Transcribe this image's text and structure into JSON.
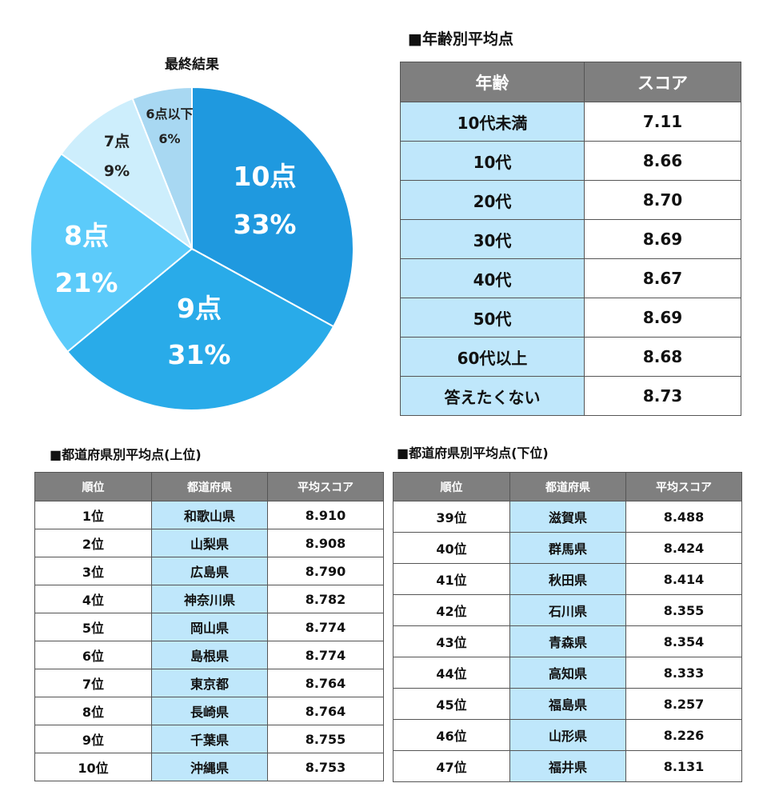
{
  "chart_data": {
    "type": "pie",
    "title": "最終結果",
    "series": [
      {
        "label": "10点",
        "value": 33,
        "pct": "33%",
        "color": "#1f99df"
      },
      {
        "label": "9点",
        "value": 31,
        "pct": "31%",
        "color": "#29abe9"
      },
      {
        "label": "8点",
        "value": 21,
        "pct": "21%",
        "color": "#5ccbfa"
      },
      {
        "label": "7点",
        "value": 9,
        "pct": "9%",
        "color": "#cdeefc"
      },
      {
        "label": "6点以下",
        "value": 6,
        "pct": "6%",
        "color": "#a8d8f2"
      }
    ]
  },
  "age_section": {
    "title": "■年齢別平均点",
    "headers": [
      "年齢",
      "スコア"
    ],
    "rows": [
      {
        "age": "10代未満",
        "score": "7.11"
      },
      {
        "age": "10代",
        "score": "8.66"
      },
      {
        "age": "20代",
        "score": "8.70"
      },
      {
        "age": "30代",
        "score": "8.69"
      },
      {
        "age": "40代",
        "score": "8.67"
      },
      {
        "age": "50代",
        "score": "8.69"
      },
      {
        "age": "60代以上",
        "score": "8.68"
      },
      {
        "age": "答えたくない",
        "score": "8.73"
      }
    ]
  },
  "pref_top": {
    "title": "■都道府県別平均点(上位)",
    "headers": [
      "順位",
      "都道府県",
      "平均スコア"
    ],
    "rows": [
      {
        "rank": "1位",
        "pref": "和歌山県",
        "score": "8.910"
      },
      {
        "rank": "2位",
        "pref": "山梨県",
        "score": "8.908"
      },
      {
        "rank": "3位",
        "pref": "広島県",
        "score": "8.790"
      },
      {
        "rank": "4位",
        "pref": "神奈川県",
        "score": "8.782"
      },
      {
        "rank": "5位",
        "pref": "岡山県",
        "score": "8.774"
      },
      {
        "rank": "6位",
        "pref": "島根県",
        "score": "8.774"
      },
      {
        "rank": "7位",
        "pref": "東京都",
        "score": "8.764"
      },
      {
        "rank": "8位",
        "pref": "長崎県",
        "score": "8.764"
      },
      {
        "rank": "9位",
        "pref": "千葉県",
        "score": "8.755"
      },
      {
        "rank": "10位",
        "pref": "沖縄県",
        "score": "8.753"
      }
    ]
  },
  "pref_bottom": {
    "title": "■都道府県別平均点(下位)",
    "headers": [
      "順位",
      "都道府県",
      "平均スコア"
    ],
    "rows": [
      {
        "rank": "39位",
        "pref": "滋賀県",
        "score": "8.488"
      },
      {
        "rank": "40位",
        "pref": "群馬県",
        "score": "8.424"
      },
      {
        "rank": "41位",
        "pref": "秋田県",
        "score": "8.414"
      },
      {
        "rank": "42位",
        "pref": "石川県",
        "score": "8.355"
      },
      {
        "rank": "43位",
        "pref": "青森県",
        "score": "8.354"
      },
      {
        "rank": "44位",
        "pref": "高知県",
        "score": "8.333"
      },
      {
        "rank": "45位",
        "pref": "福島県",
        "score": "8.257"
      },
      {
        "rank": "46位",
        "pref": "山形県",
        "score": "8.226"
      },
      {
        "rank": "47位",
        "pref": "福井県",
        "score": "8.131"
      }
    ]
  }
}
